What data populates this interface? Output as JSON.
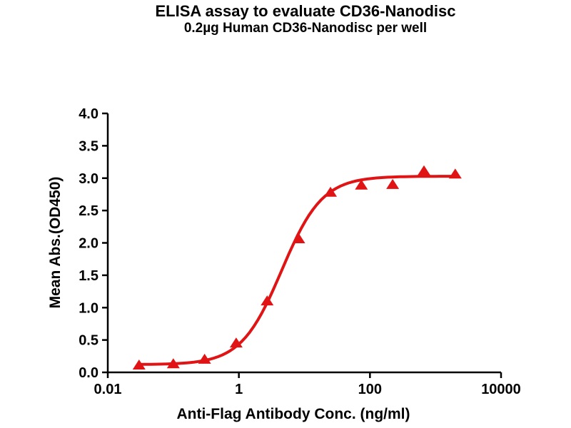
{
  "chart_data": {
    "type": "scatter",
    "title": "ELISA assay to evaluate CD36-Nanodisc",
    "subtitle": "0.2µg Human CD36-Nanodisc per well",
    "xlabel": "Anti-Flag Antibody Conc. (ng/ml)",
    "ylabel": "Mean Abs.(OD450)",
    "x_scale": "log10",
    "xlim": [
      0.01,
      10000
    ],
    "ylim": [
      0.0,
      4.0
    ],
    "grid": false,
    "legend": "none",
    "axis_color": "#000000",
    "background_color": "#ffffff",
    "xticks": [
      {
        "value": 0.01,
        "label": "0.01"
      },
      {
        "value": 1,
        "label": "1"
      },
      {
        "value": 100,
        "label": "100"
      },
      {
        "value": 10000,
        "label": "10000"
      }
    ],
    "yticks": [
      {
        "value": 0.0,
        "label": "0.0"
      },
      {
        "value": 0.5,
        "label": "0.5"
      },
      {
        "value": 1.0,
        "label": "1.0"
      },
      {
        "value": 1.5,
        "label": "1.5"
      },
      {
        "value": 2.0,
        "label": "2.0"
      },
      {
        "value": 2.5,
        "label": "2.5"
      },
      {
        "value": 3.0,
        "label": "3.0"
      },
      {
        "value": 3.5,
        "label": "3.5"
      },
      {
        "value": 4.0,
        "label": "4.0"
      }
    ],
    "series": [
      {
        "name": "Human CD36-Nanodisc",
        "marker": "triangle-up",
        "color": "#e01414",
        "x": [
          0.03,
          0.1,
          0.3,
          0.91,
          2.7,
          8.2,
          25,
          74,
          222,
          667,
          2000
        ],
        "y": [
          0.11,
          0.13,
          0.2,
          0.45,
          1.1,
          2.06,
          2.78,
          2.89,
          2.9,
          3.11,
          3.06
        ]
      }
    ],
    "fit_curve": {
      "model": "4PL",
      "bottom": 0.12,
      "top": 3.03,
      "ec50": 4.5,
      "hill": 1.4
    }
  }
}
